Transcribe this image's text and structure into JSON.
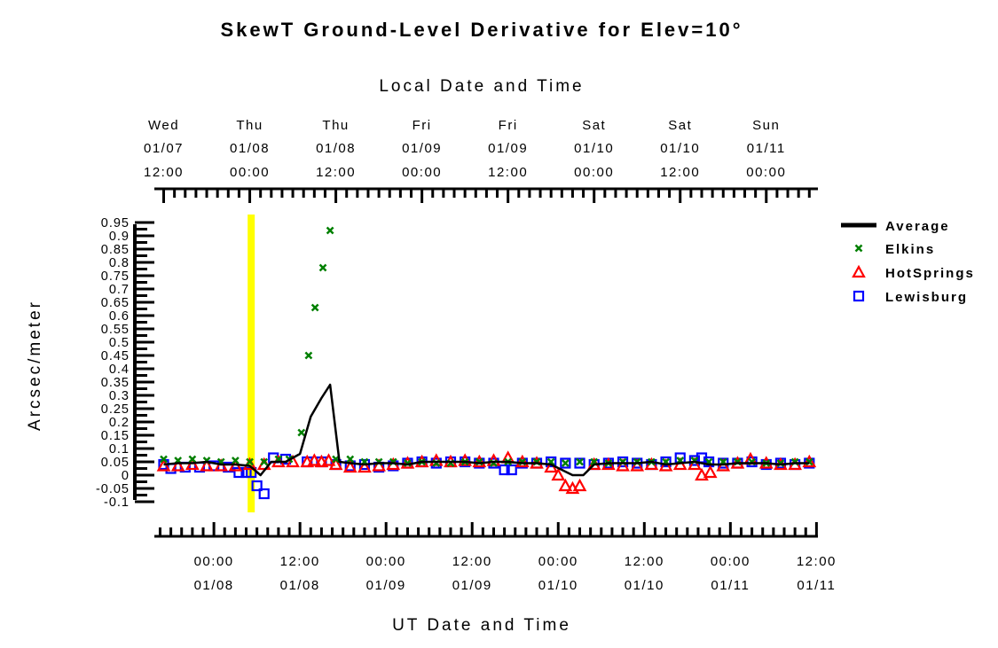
{
  "chart_data": {
    "type": "line",
    "title": "SkewT Ground-Level Derivative for Elev=10°",
    "top_axis_label": "Local Date and Time",
    "xlabel": "UT Date and Time",
    "ylabel": "Arcsec/meter",
    "x_units": "hours since 01/08 00:00 UT",
    "xlim": [
      -8.3,
      84.2
    ],
    "ylim": [
      -0.1,
      0.95
    ],
    "yticks": [
      -0.1,
      -0.05,
      0,
      0.05,
      0.1,
      0.15,
      0.2,
      0.25,
      0.3,
      0.35,
      0.4,
      0.45,
      0.5,
      0.55,
      0.6,
      0.65,
      0.7,
      0.75,
      0.8,
      0.85,
      0.9,
      0.95
    ],
    "ytick_labels": [
      "-0.1",
      "-0.05",
      "0",
      "0.05",
      "0.1",
      "0.15",
      "0.2",
      "0.25",
      "0.3",
      "0.35",
      "0.4",
      "0.45",
      "0.5",
      "0.55",
      "0.6",
      "0.65",
      "0.7",
      "0.75",
      "0.8",
      "0.85",
      "0.9",
      "0.95"
    ],
    "bottom_ticks": [
      {
        "x": 0,
        "time": "00:00",
        "date": "01/08"
      },
      {
        "x": 12,
        "time": "12:00",
        "date": "01/08"
      },
      {
        "x": 24,
        "time": "00:00",
        "date": "01/09"
      },
      {
        "x": 36,
        "time": "12:00",
        "date": "01/09"
      },
      {
        "x": 48,
        "time": "00:00",
        "date": "01/10"
      },
      {
        "x": 60,
        "time": "12:00",
        "date": "01/10"
      },
      {
        "x": 72,
        "time": "00:00",
        "date": "01/11"
      },
      {
        "x": 84,
        "time": "12:00",
        "date": "01/11"
      }
    ],
    "top_ticks": [
      {
        "x": -7,
        "day": "Wed",
        "date": "01/07",
        "time": "12:00"
      },
      {
        "x": 5,
        "day": "Thu",
        "date": "01/08",
        "time": "00:00"
      },
      {
        "x": 17,
        "day": "Thu",
        "date": "01/08",
        "time": "12:00"
      },
      {
        "x": 29,
        "day": "Fri",
        "date": "01/09",
        "time": "00:00"
      },
      {
        "x": 41,
        "day": "Fri",
        "date": "01/09",
        "time": "12:00"
      },
      {
        "x": 53,
        "day": "Sat",
        "date": "01/10",
        "time": "00:00"
      },
      {
        "x": 65,
        "day": "Sat",
        "date": "01/10",
        "time": "12:00"
      },
      {
        "x": 77,
        "day": "Sun",
        "date": "01/11",
        "time": "00:00"
      }
    ],
    "highlight": {
      "x": 5.2,
      "color": "#ffff00"
    },
    "legend_position": "right",
    "series": [
      {
        "name": "Average",
        "kind": "line",
        "color": "#000000",
        "points": [
          [
            -7,
            0.04
          ],
          [
            -5,
            0.045
          ],
          [
            -3,
            0.045
          ],
          [
            -1,
            0.05
          ],
          [
            1,
            0.04
          ],
          [
            3,
            0.04
          ],
          [
            5,
            0.035
          ],
          [
            6.5,
            0.0
          ],
          [
            8,
            0.05
          ],
          [
            10,
            0.05
          ],
          [
            12,
            0.08
          ],
          [
            13.5,
            0.22
          ],
          [
            15,
            0.29
          ],
          [
            16.2,
            0.34
          ],
          [
            17.5,
            0.05
          ],
          [
            19,
            0.045
          ],
          [
            21,
            0.04
          ],
          [
            23,
            0.045
          ],
          [
            25,
            0.045
          ],
          [
            27,
            0.04
          ],
          [
            29,
            0.05
          ],
          [
            31,
            0.05
          ],
          [
            33,
            0.05
          ],
          [
            35,
            0.05
          ],
          [
            37,
            0.045
          ],
          [
            39,
            0.05
          ],
          [
            41,
            0.05
          ],
          [
            43,
            0.045
          ],
          [
            45,
            0.045
          ],
          [
            47,
            0.04
          ],
          [
            48.5,
            0.02
          ],
          [
            50,
            0.0
          ],
          [
            51.5,
            0.0
          ],
          [
            53,
            0.04
          ],
          [
            55,
            0.045
          ],
          [
            57,
            0.045
          ],
          [
            59,
            0.045
          ],
          [
            61,
            0.05
          ],
          [
            63,
            0.04
          ],
          [
            65,
            0.045
          ],
          [
            67,
            0.05
          ],
          [
            69,
            0.04
          ],
          [
            71,
            0.04
          ],
          [
            73,
            0.045
          ],
          [
            75,
            0.045
          ],
          [
            77,
            0.045
          ],
          [
            79,
            0.04
          ],
          [
            81,
            0.045
          ],
          [
            83,
            0.045
          ]
        ]
      },
      {
        "name": "Elkins",
        "kind": "x",
        "color": "#008000",
        "points": [
          [
            -7,
            0.06
          ],
          [
            -5,
            0.055
          ],
          [
            -3,
            0.06
          ],
          [
            -1,
            0.055
          ],
          [
            1,
            0.05
          ],
          [
            3,
            0.055
          ],
          [
            5,
            0.05
          ],
          [
            7,
            0.05
          ],
          [
            9,
            0.06
          ],
          [
            10.5,
            0.06
          ],
          [
            12.2,
            0.16
          ],
          [
            13.2,
            0.45
          ],
          [
            14.1,
            0.63
          ],
          [
            15.2,
            0.78
          ],
          [
            16.2,
            0.92
          ],
          [
            17,
            0.06
          ],
          [
            19,
            0.06
          ],
          [
            21,
            0.05
          ],
          [
            23,
            0.05
          ],
          [
            25,
            0.05
          ],
          [
            27,
            0.045
          ],
          [
            29,
            0.05
          ],
          [
            31,
            0.045
          ],
          [
            33,
            0.045
          ],
          [
            35,
            0.05
          ],
          [
            37,
            0.05
          ],
          [
            39,
            0.045
          ],
          [
            41,
            0.05
          ],
          [
            43,
            0.05
          ],
          [
            45,
            0.05
          ],
          [
            47,
            0.05
          ],
          [
            49,
            0.045
          ],
          [
            51,
            0.05
          ],
          [
            53,
            0.05
          ],
          [
            55,
            0.045
          ],
          [
            57,
            0.05
          ],
          [
            59,
            0.05
          ],
          [
            61,
            0.05
          ],
          [
            63,
            0.05
          ],
          [
            65,
            0.055
          ],
          [
            67,
            0.055
          ],
          [
            69,
            0.05
          ],
          [
            71,
            0.05
          ],
          [
            73,
            0.05
          ],
          [
            75,
            0.05
          ],
          [
            77,
            0.045
          ],
          [
            79,
            0.045
          ],
          [
            81,
            0.05
          ],
          [
            83,
            0.05
          ]
        ]
      },
      {
        "name": "HotSprings",
        "kind": "triangle",
        "color": "#ff0000",
        "points": [
          [
            -7,
            0.035
          ],
          [
            -5,
            0.035
          ],
          [
            -3,
            0.04
          ],
          [
            -1,
            0.035
          ],
          [
            1,
            0.035
          ],
          [
            3,
            0.035
          ],
          [
            5,
            0.04
          ],
          [
            7,
            0.04
          ],
          [
            9,
            0.05
          ],
          [
            11,
            0.05
          ],
          [
            13,
            0.05
          ],
          [
            14,
            0.055
          ],
          [
            15,
            0.05
          ],
          [
            16,
            0.055
          ],
          [
            17,
            0.04
          ],
          [
            19,
            0.03
          ],
          [
            21,
            0.03
          ],
          [
            23,
            0.035
          ],
          [
            25,
            0.04
          ],
          [
            27,
            0.045
          ],
          [
            29,
            0.05
          ],
          [
            31,
            0.055
          ],
          [
            33,
            0.05
          ],
          [
            35,
            0.055
          ],
          [
            37,
            0.05
          ],
          [
            39,
            0.055
          ],
          [
            41,
            0.065
          ],
          [
            43,
            0.05
          ],
          [
            45,
            0.045
          ],
          [
            47,
            0.03
          ],
          [
            48,
            0.0
          ],
          [
            49,
            -0.04
          ],
          [
            50,
            -0.05
          ],
          [
            51,
            -0.04
          ],
          [
            53,
            0.04
          ],
          [
            55,
            0.04
          ],
          [
            57,
            0.035
          ],
          [
            59,
            0.035
          ],
          [
            61,
            0.04
          ],
          [
            63,
            0.035
          ],
          [
            65,
            0.04
          ],
          [
            67,
            0.04
          ],
          [
            68,
            0.0
          ],
          [
            69.2,
            0.01
          ],
          [
            71,
            0.035
          ],
          [
            73,
            0.045
          ],
          [
            74.8,
            0.06
          ],
          [
            77,
            0.045
          ],
          [
            79,
            0.04
          ],
          [
            81,
            0.04
          ],
          [
            83,
            0.05
          ]
        ]
      },
      {
        "name": "Lewisburg",
        "kind": "square",
        "color": "#0000ff",
        "points": [
          [
            -7,
            0.04
          ],
          [
            -6,
            0.025
          ],
          [
            -4,
            0.03
          ],
          [
            -2,
            0.03
          ],
          [
            0,
            0.035
          ],
          [
            2,
            0.03
          ],
          [
            3.5,
            0.01
          ],
          [
            4.5,
            0.01
          ],
          [
            5.2,
            0.01
          ],
          [
            6,
            -0.04
          ],
          [
            7,
            -0.07
          ],
          [
            8.3,
            0.065
          ],
          [
            10,
            0.06
          ],
          [
            13,
            0.05
          ],
          [
            15,
            0.05
          ],
          [
            17,
            0.04
          ],
          [
            19,
            0.035
          ],
          [
            21,
            0.04
          ],
          [
            23,
            0.03
          ],
          [
            25,
            0.035
          ],
          [
            27,
            0.045
          ],
          [
            29,
            0.05
          ],
          [
            31,
            0.045
          ],
          [
            33,
            0.05
          ],
          [
            35,
            0.05
          ],
          [
            37,
            0.045
          ],
          [
            39,
            0.045
          ],
          [
            40.5,
            0.02
          ],
          [
            41.5,
            0.02
          ],
          [
            43,
            0.045
          ],
          [
            45,
            0.045
          ],
          [
            47,
            0.05
          ],
          [
            49,
            0.045
          ],
          [
            51,
            0.045
          ],
          [
            53,
            0.04
          ],
          [
            55,
            0.045
          ],
          [
            57,
            0.05
          ],
          [
            59,
            0.045
          ],
          [
            61,
            0.04
          ],
          [
            63,
            0.05
          ],
          [
            65,
            0.065
          ],
          [
            67,
            0.055
          ],
          [
            68,
            0.065
          ],
          [
            69,
            0.05
          ],
          [
            71,
            0.045
          ],
          [
            73,
            0.045
          ],
          [
            75,
            0.05
          ],
          [
            77,
            0.04
          ],
          [
            79,
            0.045
          ],
          [
            81,
            0.04
          ],
          [
            83,
            0.045
          ]
        ]
      }
    ]
  }
}
